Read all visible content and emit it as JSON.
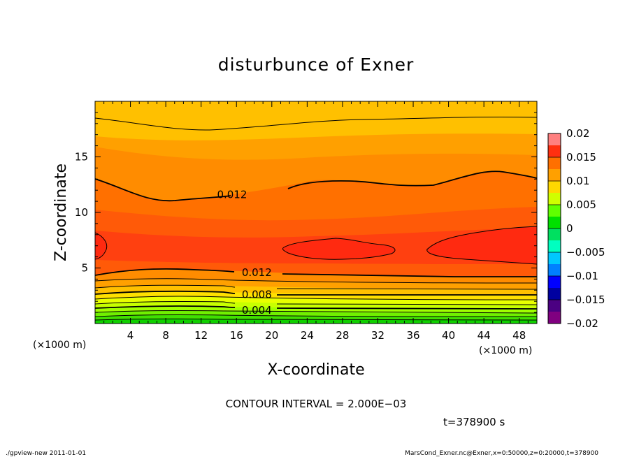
{
  "chart_data": {
    "type": "heatmap",
    "title": "disturbunce of Exner",
    "xlabel": "X-coordinate",
    "ylabel": "Z-coordinate",
    "x_unit": "(×1000 m)",
    "xlim": [
      0,
      50
    ],
    "ylim": [
      0,
      20
    ],
    "x_ticks": [
      4,
      8,
      12,
      16,
      20,
      24,
      28,
      32,
      36,
      40,
      44,
      48
    ],
    "y_ticks": [
      5,
      10,
      15
    ],
    "contour_labels": [
      {
        "x": 15.5,
        "z": 11.6,
        "text": "0.012"
      },
      {
        "x": 18.3,
        "z": 4.6,
        "text": "0.012"
      },
      {
        "x": 18.3,
        "z": 2.6,
        "text": "0.008"
      },
      {
        "x": 18.3,
        "z": 1.2,
        "text": "0.004"
      }
    ],
    "colorbar": {
      "min": -0.02,
      "max": 0.02,
      "tick_labels": [
        "0.02",
        "0.015",
        "0.01",
        "0.005",
        "0",
        "−0.005",
        "−0.01",
        "−0.015",
        "−0.02"
      ],
      "levels": [
        {
          "lo": -0.02,
          "hi": -0.0175,
          "color": "#800080"
        },
        {
          "lo": -0.0175,
          "hi": -0.015,
          "color": "#4b0082"
        },
        {
          "lo": -0.015,
          "hi": -0.0125,
          "color": "#0000a0"
        },
        {
          "lo": -0.0125,
          "hi": -0.01,
          "color": "#0000ff"
        },
        {
          "lo": -0.01,
          "hi": -0.0075,
          "color": "#0080ff"
        },
        {
          "lo": -0.0075,
          "hi": -0.005,
          "color": "#00c8ff"
        },
        {
          "lo": -0.005,
          "hi": -0.0025,
          "color": "#00ffc0"
        },
        {
          "lo": -0.0025,
          "hi": 0,
          "color": "#00e060"
        },
        {
          "lo": 0,
          "hi": 0.0025,
          "color": "#00e000"
        },
        {
          "lo": 0.0025,
          "hi": 0.005,
          "color": "#60ff00"
        },
        {
          "lo": 0.005,
          "hi": 0.0075,
          "color": "#d0ff00"
        },
        {
          "lo": 0.0075,
          "hi": 0.01,
          "color": "#ffd800"
        },
        {
          "lo": 0.01,
          "hi": 0.0125,
          "color": "#ffa000"
        },
        {
          "lo": 0.0125,
          "hi": 0.015,
          "color": "#ff7000"
        },
        {
          "lo": 0.015,
          "hi": 0.0175,
          "color": "#ff3010"
        },
        {
          "lo": 0.0175,
          "hi": 0.02,
          "color": "#ff8080"
        }
      ]
    },
    "contour_interval_text": "CONTOUR INTERVAL = 2.000E−03",
    "time_text": "t=378900 s"
  },
  "footer": {
    "left": "./gpview-new  2011-01-01",
    "right": "MarsCond_Exner.nc@Exner,x=0:50000,z=0:20000,t=378900"
  }
}
